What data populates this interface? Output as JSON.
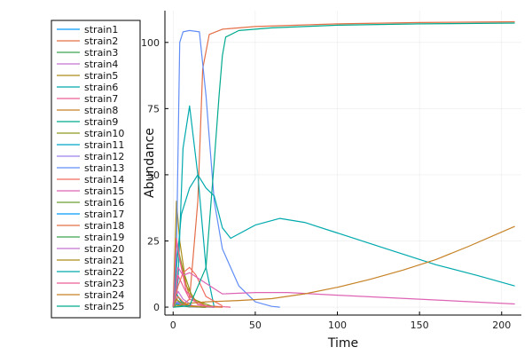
{
  "chart_data": {
    "type": "line",
    "xlabel": "Time",
    "ylabel": "Abundance",
    "xlim": [
      -5,
      212
    ],
    "ylim": [
      -3,
      112
    ],
    "x_ticks": [
      0,
      50,
      100,
      150,
      200
    ],
    "y_ticks": [
      0,
      25,
      50,
      75,
      100
    ],
    "grid": true,
    "legend_position": "top-left-outside",
    "series": [
      {
        "name": "strain1",
        "color": "#009AFA",
        "x": [
          0,
          2,
          5,
          10,
          20
        ],
        "y": [
          0,
          2,
          1,
          0.2,
          0
        ]
      },
      {
        "name": "strain2",
        "color": "#E36F47",
        "x": [
          0,
          5,
          10,
          15,
          18,
          22,
          30,
          50,
          100,
          150,
          208
        ],
        "y": [
          0,
          0.5,
          3,
          40,
          90,
          103,
          105,
          106,
          107,
          107.5,
          107.8
        ]
      },
      {
        "name": "strain3",
        "color": "#3EA44E",
        "x": [
          0,
          2,
          5,
          10,
          20
        ],
        "y": [
          0,
          3,
          1,
          0.2,
          0
        ]
      },
      {
        "name": "strain4",
        "color": "#C371D2",
        "x": [
          0,
          3,
          6,
          12,
          25
        ],
        "y": [
          0,
          6,
          3,
          0.5,
          0
        ]
      },
      {
        "name": "strain5",
        "color": "#AC8E18",
        "x": [
          0,
          2,
          4,
          8,
          15,
          25
        ],
        "y": [
          0,
          40,
          25,
          8,
          1,
          0
        ]
      },
      {
        "name": "strain6",
        "color": "#00A9AD",
        "x": [
          0,
          3,
          6,
          10,
          15,
          20,
          25
        ],
        "y": [
          0,
          10,
          60,
          76,
          50,
          15,
          0
        ]
      },
      {
        "name": "strain7",
        "color": "#ED5E93",
        "x": [
          0,
          3,
          6,
          10,
          20,
          35
        ],
        "y": [
          0,
          12,
          8,
          3,
          0.5,
          0
        ]
      },
      {
        "name": "strain8",
        "color": "#C68225",
        "x": [
          0,
          2,
          5,
          10,
          20,
          30
        ],
        "y": [
          0,
          25,
          15,
          4,
          0.5,
          0
        ]
      },
      {
        "name": "strain9",
        "color": "#00A98D",
        "x": [
          0,
          2,
          5,
          10,
          20
        ],
        "y": [
          0,
          5,
          2,
          0.5,
          0
        ]
      },
      {
        "name": "strain10",
        "color": "#8E971D",
        "x": [
          0,
          3,
          6,
          12,
          25
        ],
        "y": [
          0,
          22,
          14,
          3,
          0
        ]
      },
      {
        "name": "strain11",
        "color": "#00A8CB",
        "x": [
          0,
          2,
          4,
          8,
          15,
          25
        ],
        "y": [
          0,
          3,
          1.5,
          0.5,
          0.1,
          0
        ]
      },
      {
        "name": "strain12",
        "color": "#9B7FE9",
        "x": [
          0,
          2,
          4,
          8,
          15
        ],
        "y": [
          0,
          2,
          1,
          0.2,
          0
        ]
      },
      {
        "name": "strain13",
        "color": "#618DF6",
        "x": [
          0,
          2,
          4,
          6,
          10,
          16,
          20,
          25,
          30,
          40,
          50,
          60,
          65
        ],
        "y": [
          0,
          20,
          100,
          104,
          104.5,
          104,
          80,
          40,
          22,
          8,
          2,
          0.3,
          0
        ]
      },
      {
        "name": "strain14",
        "color": "#F16C5E",
        "x": [
          0,
          3,
          6,
          10,
          14,
          20,
          30
        ],
        "y": [
          0,
          8,
          13,
          15,
          12,
          4,
          0.5
        ]
      },
      {
        "name": "strain15",
        "color": "#DD64B5",
        "x": [
          0,
          3,
          6,
          10,
          15,
          20,
          30,
          50,
          70,
          100,
          150,
          208
        ],
        "y": [
          0,
          15,
          12,
          13,
          11,
          9,
          5,
          5.5,
          5.5,
          4.5,
          3,
          1.2
        ]
      },
      {
        "name": "strain16",
        "color": "#6B9E32",
        "x": [
          0,
          2,
          5,
          10,
          20
        ],
        "y": [
          0,
          2,
          1,
          0.2,
          0
        ]
      },
      {
        "name": "strain17",
        "color": "#009AFA",
        "x": [
          0,
          2,
          5,
          10,
          20
        ],
        "y": [
          0,
          1.5,
          0.8,
          0.1,
          0
        ]
      },
      {
        "name": "strain18",
        "color": "#E36F47",
        "x": [
          0,
          3,
          6,
          10,
          20,
          30
        ],
        "y": [
          0,
          4,
          2,
          0.6,
          0.1,
          0
        ]
      },
      {
        "name": "strain19",
        "color": "#3EA44E",
        "x": [
          0,
          2,
          5,
          10,
          20
        ],
        "y": [
          0,
          1,
          0.5,
          0.1,
          0
        ]
      },
      {
        "name": "strain20",
        "color": "#C371D2",
        "x": [
          0,
          2,
          5,
          10,
          20
        ],
        "y": [
          0,
          2,
          1,
          0.2,
          0
        ]
      },
      {
        "name": "strain21",
        "color": "#AC8E18",
        "x": [
          0,
          2,
          5,
          10,
          20
        ],
        "y": [
          0,
          3,
          1.5,
          0.3,
          0
        ]
      },
      {
        "name": "strain22",
        "color": "#00A9AD",
        "x": [
          0,
          2,
          5,
          10,
          15,
          20,
          25,
          30,
          35,
          50,
          65,
          80,
          100,
          130,
          160,
          185,
          208
        ],
        "y": [
          0,
          15,
          35,
          45,
          50,
          45,
          42,
          30,
          26,
          31,
          33.5,
          32,
          28,
          22,
          16,
          12,
          8
        ]
      },
      {
        "name": "strain23",
        "color": "#ED5E93",
        "x": [
          0,
          2,
          4,
          8,
          15,
          25
        ],
        "y": [
          0,
          26,
          18,
          6,
          1,
          0
        ]
      },
      {
        "name": "strain24",
        "color": "#C68225",
        "x": [
          0,
          3,
          6,
          10,
          20,
          40,
          60,
          80,
          100,
          120,
          140,
          160,
          180,
          208
        ],
        "y": [
          0,
          0.5,
          1,
          1.5,
          2,
          2.5,
          3.2,
          5,
          7.5,
          10.5,
          14,
          18,
          23,
          30.5
        ]
      },
      {
        "name": "strain25",
        "color": "#00A98D",
        "x": [
          0,
          10,
          20,
          25,
          28,
          30,
          32,
          40,
          60,
          100,
          150,
          208
        ],
        "y": [
          0,
          0.5,
          15,
          55,
          80,
          95,
          102,
          104.5,
          105.5,
          106.5,
          107,
          107.3
        ]
      }
    ]
  }
}
